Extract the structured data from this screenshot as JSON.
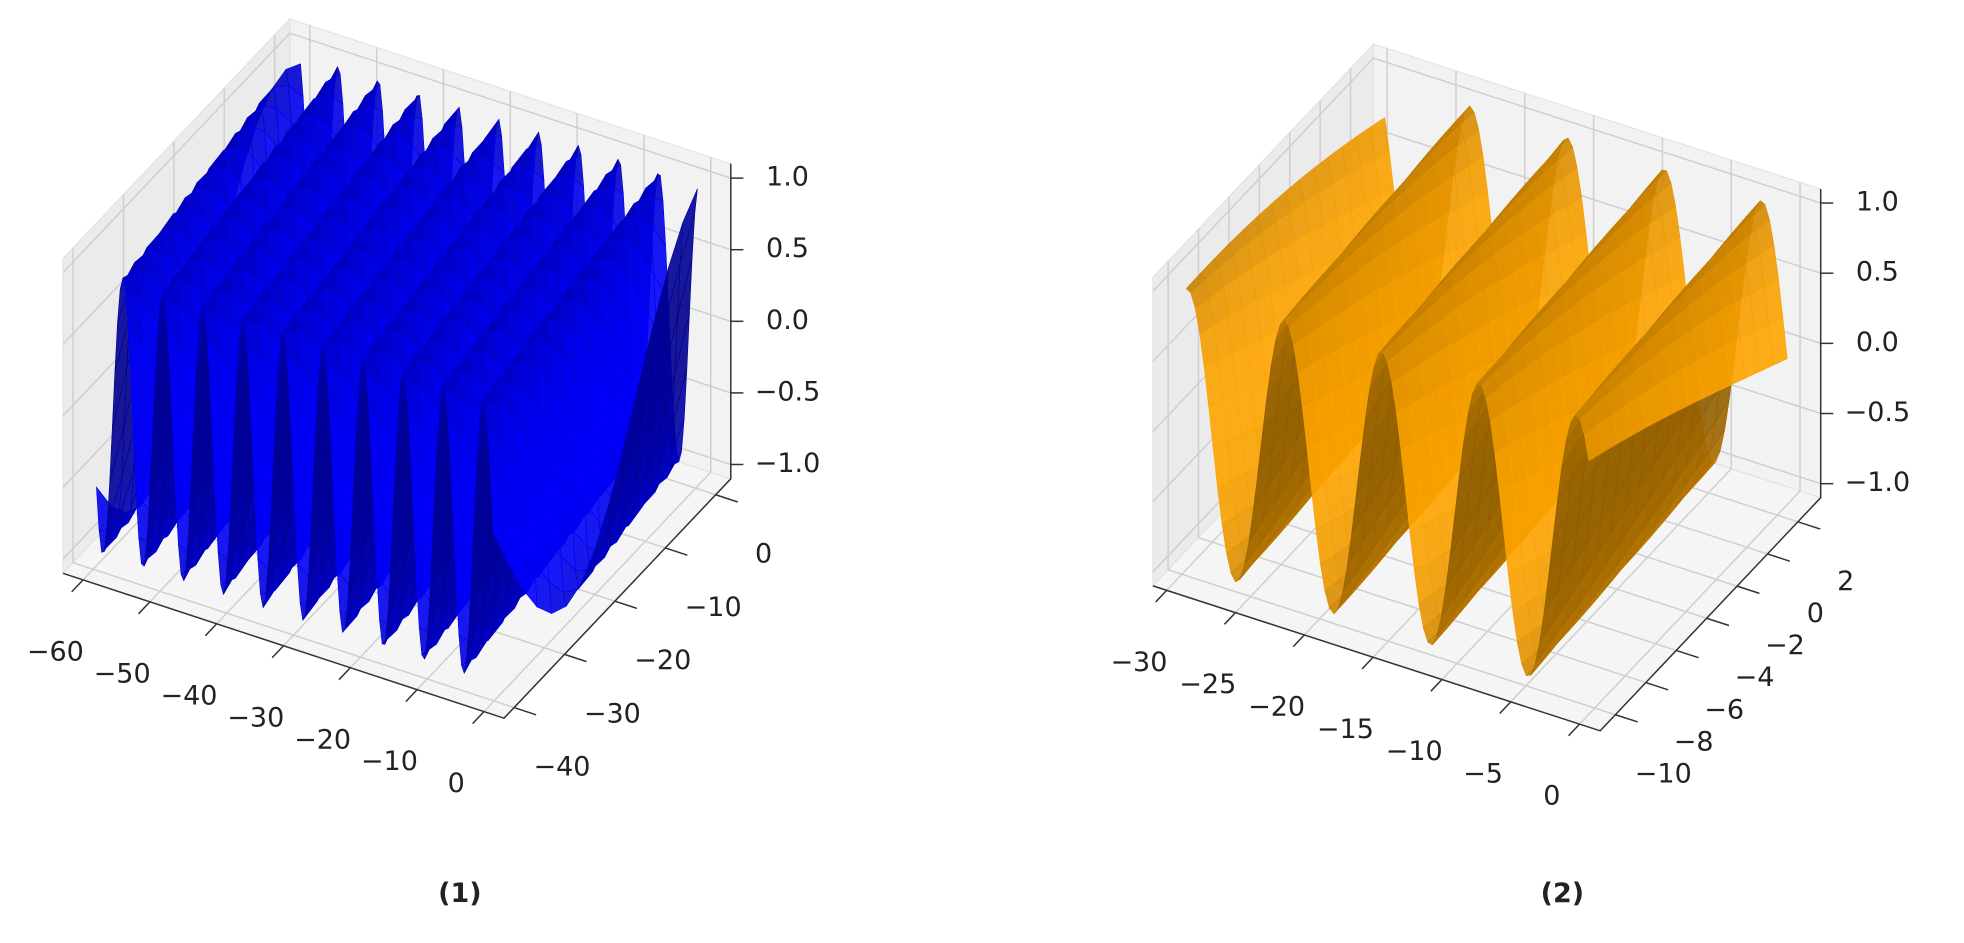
{
  "chart_data": [
    {
      "type": "surface3d",
      "caption": "(1)",
      "color": "#0000ff",
      "xlim": [
        -63,
        3
      ],
      "xticks": [
        {
          "value": -60,
          "label": "−60"
        },
        {
          "value": -50,
          "label": "−50"
        },
        {
          "value": -40,
          "label": "−40"
        },
        {
          "value": -30,
          "label": "−30"
        },
        {
          "value": -20,
          "label": "−20"
        },
        {
          "value": -10,
          "label": "−10"
        },
        0
      ],
      "ylim": [
        -42,
        3
      ],
      "yticks": [
        {
          "value": -40,
          "label": "−40"
        },
        {
          "value": -30,
          "label": "−30"
        },
        {
          "value": -20,
          "label": "−20"
        },
        {
          "value": -10,
          "label": "−10"
        },
        0
      ],
      "zlim": [
        -1.1,
        1.1
      ],
      "zticks": [
        {
          "value": -1,
          "label": "−1.0"
        },
        {
          "value": -0.5,
          "label": "−0.5"
        },
        {
          "value": 0,
          "label": "0.0"
        },
        0.5,
        {
          "value": 1,
          "label": "1.0"
        }
      ]
    },
    {
      "type": "surface3d",
      "caption": "(2)",
      "color": "#ffa500",
      "xlim": [
        -31,
        1.5
      ],
      "xticks": [
        {
          "value": -30,
          "label": "−30"
        },
        {
          "value": -25,
          "label": "−25"
        },
        {
          "value": -20,
          "label": "−20"
        },
        {
          "value": -15,
          "label": "−15"
        },
        {
          "value": -10,
          "label": "−10"
        },
        {
          "value": -5,
          "label": "−5"
        },
        0
      ],
      "ylim": [
        -11,
        3.5
      ],
      "yticks": [
        {
          "value": -10,
          "label": "−10"
        },
        {
          "value": -8,
          "label": "−8"
        },
        {
          "value": -6,
          "label": "−6"
        },
        {
          "value": -4,
          "label": "−4"
        },
        {
          "value": -2,
          "label": "−2"
        },
        0,
        2
      ],
      "zlim": [
        -1.1,
        1.1
      ],
      "zticks": [
        {
          "value": -1,
          "label": "−1.0"
        },
        {
          "value": -0.5,
          "label": "−0.5"
        },
        {
          "value": 0,
          "label": "0.0"
        },
        0.5,
        {
          "value": 1,
          "label": "1.0"
        }
      ]
    }
  ]
}
